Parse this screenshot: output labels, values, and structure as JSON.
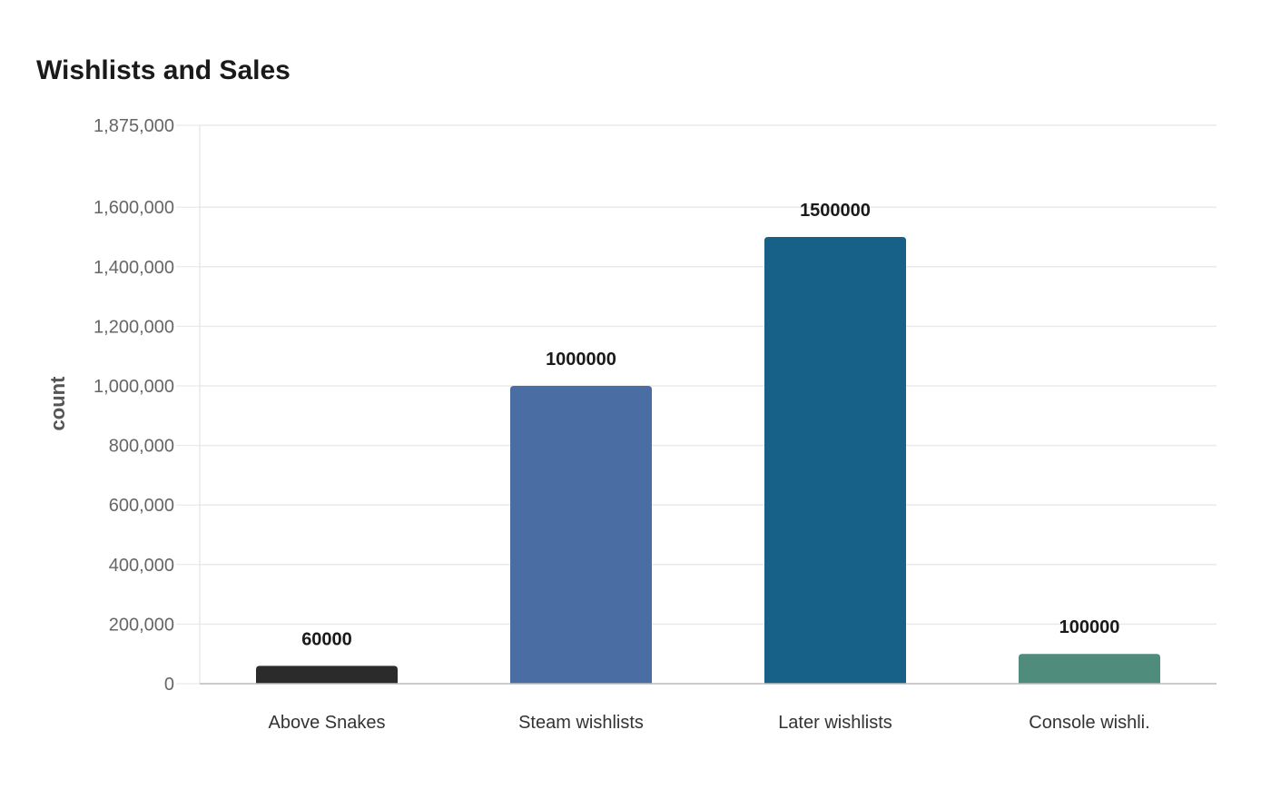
{
  "chart_data": {
    "type": "bar",
    "title": "Wishlists and Sales",
    "xlabel": "",
    "ylabel": "count",
    "categories": [
      "Above Snakes",
      "Steam wishlists",
      "Later wishlists",
      "Console wishli."
    ],
    "values": [
      60000,
      1000000,
      1500000,
      100000
    ],
    "value_labels": [
      "60000",
      "1000000",
      "1500000",
      "100000"
    ],
    "colors": [
      "#2b2b2b",
      "#4a6ea3",
      "#176189",
      "#4f8c7c"
    ],
    "ylim": [
      0,
      1875000
    ],
    "yticks": [
      0,
      200000,
      400000,
      600000,
      800000,
      1000000,
      1200000,
      1400000,
      1600000,
      1875000
    ],
    "ytick_labels": [
      "0",
      "200,000",
      "400,000",
      "600,000",
      "800,000",
      "1,000,000",
      "1,200,000",
      "1,400,000",
      "1,600,000",
      "1,875,000"
    ],
    "grid": true,
    "legend": "none"
  }
}
